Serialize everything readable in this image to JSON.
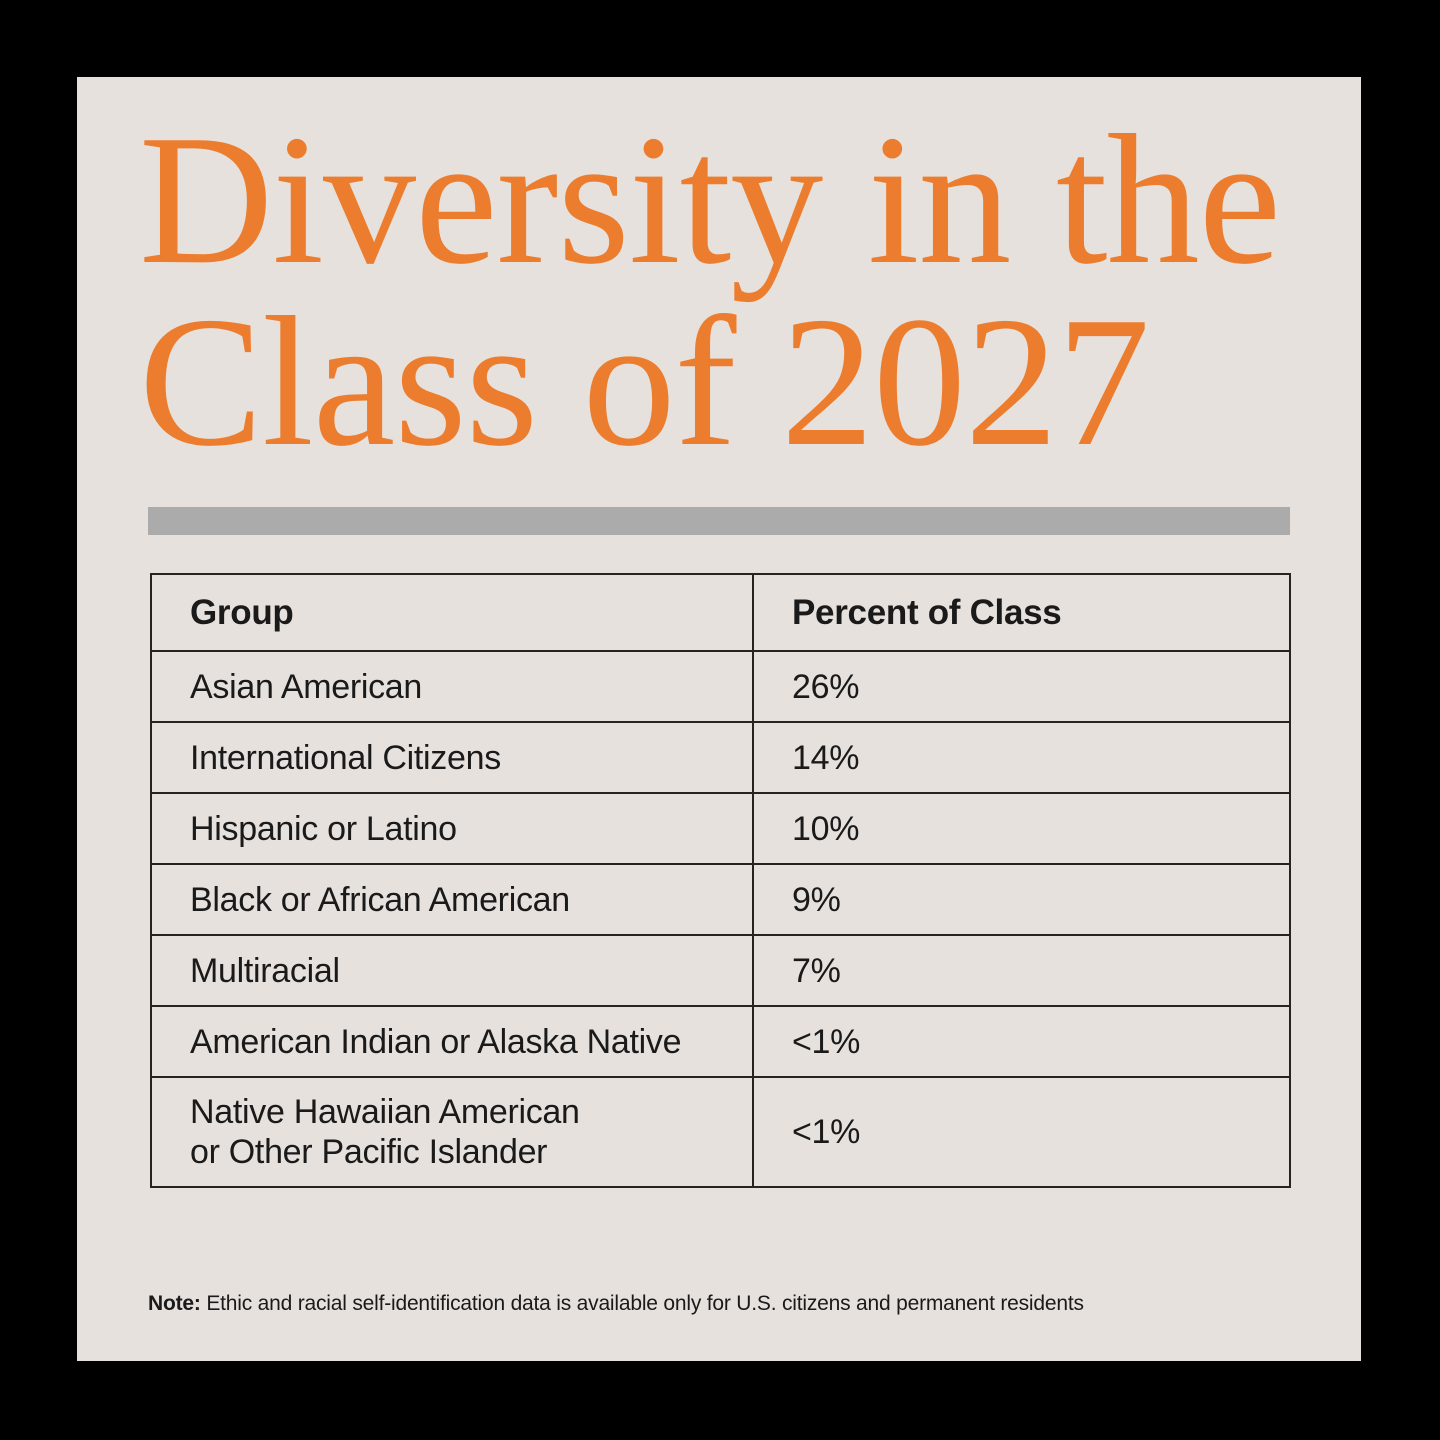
{
  "title": {
    "line1": "Diversity in the",
    "line2": "Class of 2027"
  },
  "table": {
    "headers": {
      "group": "Group",
      "percent": "Percent of Class"
    },
    "rows": [
      {
        "group": "Asian American",
        "percent": "26%"
      },
      {
        "group": "International Citizens",
        "percent": "14%"
      },
      {
        "group": "Hispanic or Latino",
        "percent": "10%"
      },
      {
        "group": "Black or African American",
        "percent": "9%"
      },
      {
        "group": "Multiracial",
        "percent": "7%"
      },
      {
        "group": "American Indian or Alaska Native",
        "percent": "<1%"
      },
      {
        "group": "Native Hawaiian American\nor Other Pacific Islander",
        "percent": "<1%"
      }
    ]
  },
  "note": {
    "label": "Note:",
    "text": "Ethic and racial self-identification data is available only for U.S. citizens and permanent residents"
  },
  "colors": {
    "accent_orange": "#ED7D2E",
    "panel_background": "#E6E1DD",
    "frame_black": "#000000",
    "divider_gray": "#ABABAB",
    "text_black": "#1A1A1A",
    "table_border": "#282320"
  },
  "chart_data": {
    "type": "table",
    "title": "Diversity in the Class of 2027",
    "columns": [
      "Group",
      "Percent of Class"
    ],
    "rows": [
      [
        "Asian American",
        "26%"
      ],
      [
        "International Citizens",
        "14%"
      ],
      [
        "Hispanic or Latino",
        "10%"
      ],
      [
        "Black or African American",
        "9%"
      ],
      [
        "Multiracial",
        "7%"
      ],
      [
        "American Indian or Alaska Native",
        "<1%"
      ],
      [
        "Native Hawaiian American or Other Pacific Islander",
        "<1%"
      ]
    ],
    "note": "Note: Ethic and racial self-identification data is available only for U.S. citizens and permanent residents"
  }
}
